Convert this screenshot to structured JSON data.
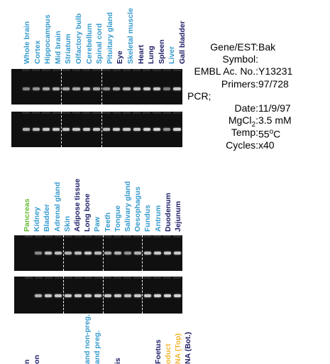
{
  "colors": {
    "tissue_blue": "#3399cc",
    "tissue_navy": "#1a1a66",
    "tissue_green": "#66bb33",
    "tissue_orange": "#f2b630"
  },
  "panel1": {
    "lanes": [
      {
        "label": "Whole brain",
        "color": "#3399cc",
        "band1": 0.55,
        "band2": 0.75
      },
      {
        "label": "Cortex",
        "color": "#3399cc",
        "band1": 0.6,
        "band2": 0.8
      },
      {
        "label": "Hippocampus",
        "color": "#3399cc",
        "band1": 0.7,
        "band2": 0.85
      },
      {
        "label": "Mid brain",
        "color": "#3399cc",
        "band1": 0.75,
        "band2": 0.85
      },
      {
        "label": "Striatum",
        "color": "#3399cc",
        "band1": 0.7,
        "band2": 0.85
      },
      {
        "label": "Olfactory bulb",
        "color": "#3399cc",
        "band1": 0.7,
        "band2": 0.85
      },
      {
        "label": "Cerebellum",
        "color": "#3399cc",
        "band1": 0.75,
        "band2": 0.85
      },
      {
        "label": "Spinal cord",
        "color": "#3399cc",
        "band1": 0.7,
        "band2": 0.85
      },
      {
        "label": "Pituitary gland",
        "color": "#3399cc",
        "band1": 0.6,
        "band2": 0.8
      },
      {
        "label": "Eye",
        "color": "#1a1a66",
        "band1": 0.7,
        "band2": 0.85
      },
      {
        "label": "Skeletal muscle",
        "color": "#3399cc",
        "band1": 0.75,
        "band2": 0.85
      },
      {
        "label": "Heart",
        "color": "#1a1a66",
        "band1": 0.8,
        "band2": 0.85
      },
      {
        "label": "Lung",
        "color": "#1a1a66",
        "band1": 0.85,
        "band2": 0.9
      },
      {
        "label": "Spleen",
        "color": "#1a1a66",
        "band1": 0.85,
        "band2": 0.9
      },
      {
        "label": "Liver",
        "color": "#3399cc",
        "band1": 0.5,
        "band2": 0.6
      },
      {
        "label": "Gall bladder",
        "color": "#1a1a66",
        "band1": 0.85,
        "band2": 0.9
      }
    ],
    "dividers_after": [
      4,
      8
    ]
  },
  "panel2": {
    "lanes": [
      {
        "label": "Pancreas",
        "color": "#66bb33",
        "band1": 0.0,
        "band2": 0.0
      },
      {
        "label": "Kidney",
        "color": "#3399cc",
        "band1": 0.55,
        "band2": 0.75
      },
      {
        "label": "Bladder",
        "color": "#3399cc",
        "band1": 0.8,
        "band2": 0.85
      },
      {
        "label": "Adrenal gland",
        "color": "#3399cc",
        "band1": 0.8,
        "band2": 0.85
      },
      {
        "label": "Skin",
        "color": "#3399cc",
        "band1": 0.75,
        "band2": 0.85
      },
      {
        "label": "Adipose tissue",
        "color": "#1a1a66",
        "band1": 0.8,
        "band2": 0.85
      },
      {
        "label": "Long bone",
        "color": "#1a1a66",
        "band1": 0.85,
        "band2": 0.85
      },
      {
        "label": "Paw",
        "color": "#3399cc",
        "band1": 0.8,
        "band2": 0.85
      },
      {
        "label": "Teeth",
        "color": "#3399cc",
        "band1": 0.7,
        "band2": 0.85
      },
      {
        "label": "Tongue",
        "color": "#3399cc",
        "band1": 0.75,
        "band2": 0.85
      },
      {
        "label": "Salivary gland",
        "color": "#3399cc",
        "band1": 0.6,
        "band2": 0.8
      },
      {
        "label": "Oesophagus",
        "color": "#3399cc",
        "band1": 0.75,
        "band2": 0.85
      },
      {
        "label": "Fundus",
        "color": "#3399cc",
        "band1": 0.8,
        "band2": 0.85
      },
      {
        "label": "Antrum",
        "color": "#3399cc",
        "band1": 0.85,
        "band2": 0.9
      },
      {
        "label": "Duodenum",
        "color": "#1a1a66",
        "band1": 0.85,
        "band2": 0.9
      },
      {
        "label": "Jejunum",
        "color": "#1a1a66",
        "band1": 0.85,
        "band2": 0.9
      }
    ],
    "dividers_after": [
      4,
      8,
      12
    ]
  },
  "panel3": {
    "lanes": [
      {
        "label": "n",
        "color": "#1a1a66"
      },
      {
        "label": "on",
        "color": "#1a1a66"
      },
      {
        "label": "",
        "color": "#3399cc"
      },
      {
        "label": "",
        "color": "#3399cc"
      },
      {
        "label": "",
        "color": "#3399cc"
      },
      {
        "label": "",
        "color": "#3399cc"
      },
      {
        "label": "and non-preg.",
        "color": "#3399cc"
      },
      {
        "label": "and preg.",
        "color": "#3399cc"
      },
      {
        "label": "",
        "color": "#3399cc"
      },
      {
        "label": "is",
        "color": "#1a1a66"
      },
      {
        "label": "",
        "color": "#3399cc"
      },
      {
        "label": "",
        "color": "#3399cc"
      },
      {
        "label": "",
        "color": "#3399cc"
      },
      {
        "label": "Foetus",
        "color": "#1a1a66"
      },
      {
        "label": "oduct",
        "color": "#f2b630"
      },
      {
        "label": "NA (Top)",
        "color": "#f2b630"
      },
      {
        "label": "NA (Bot.)",
        "color": "#1a1a66"
      }
    ]
  },
  "info": {
    "rows": [
      {
        "key": "Gene/EST:",
        "value": "Bak"
      },
      {
        "key": "Symbol:",
        "value": ""
      },
      {
        "key": "EMBL Ac. No.:",
        "value": "Y13231"
      },
      {
        "key": "Primers:",
        "value": "97/728"
      },
      {
        "key": "PCR;",
        "value": ""
      },
      {
        "key": "Date:",
        "value": "11/9/97"
      },
      {
        "key": "MgCl2:",
        "value": "3.5 mM"
      },
      {
        "key": "Temp:",
        "value": "55oC"
      },
      {
        "key": "Cycles:",
        "value": "x40"
      }
    ]
  }
}
